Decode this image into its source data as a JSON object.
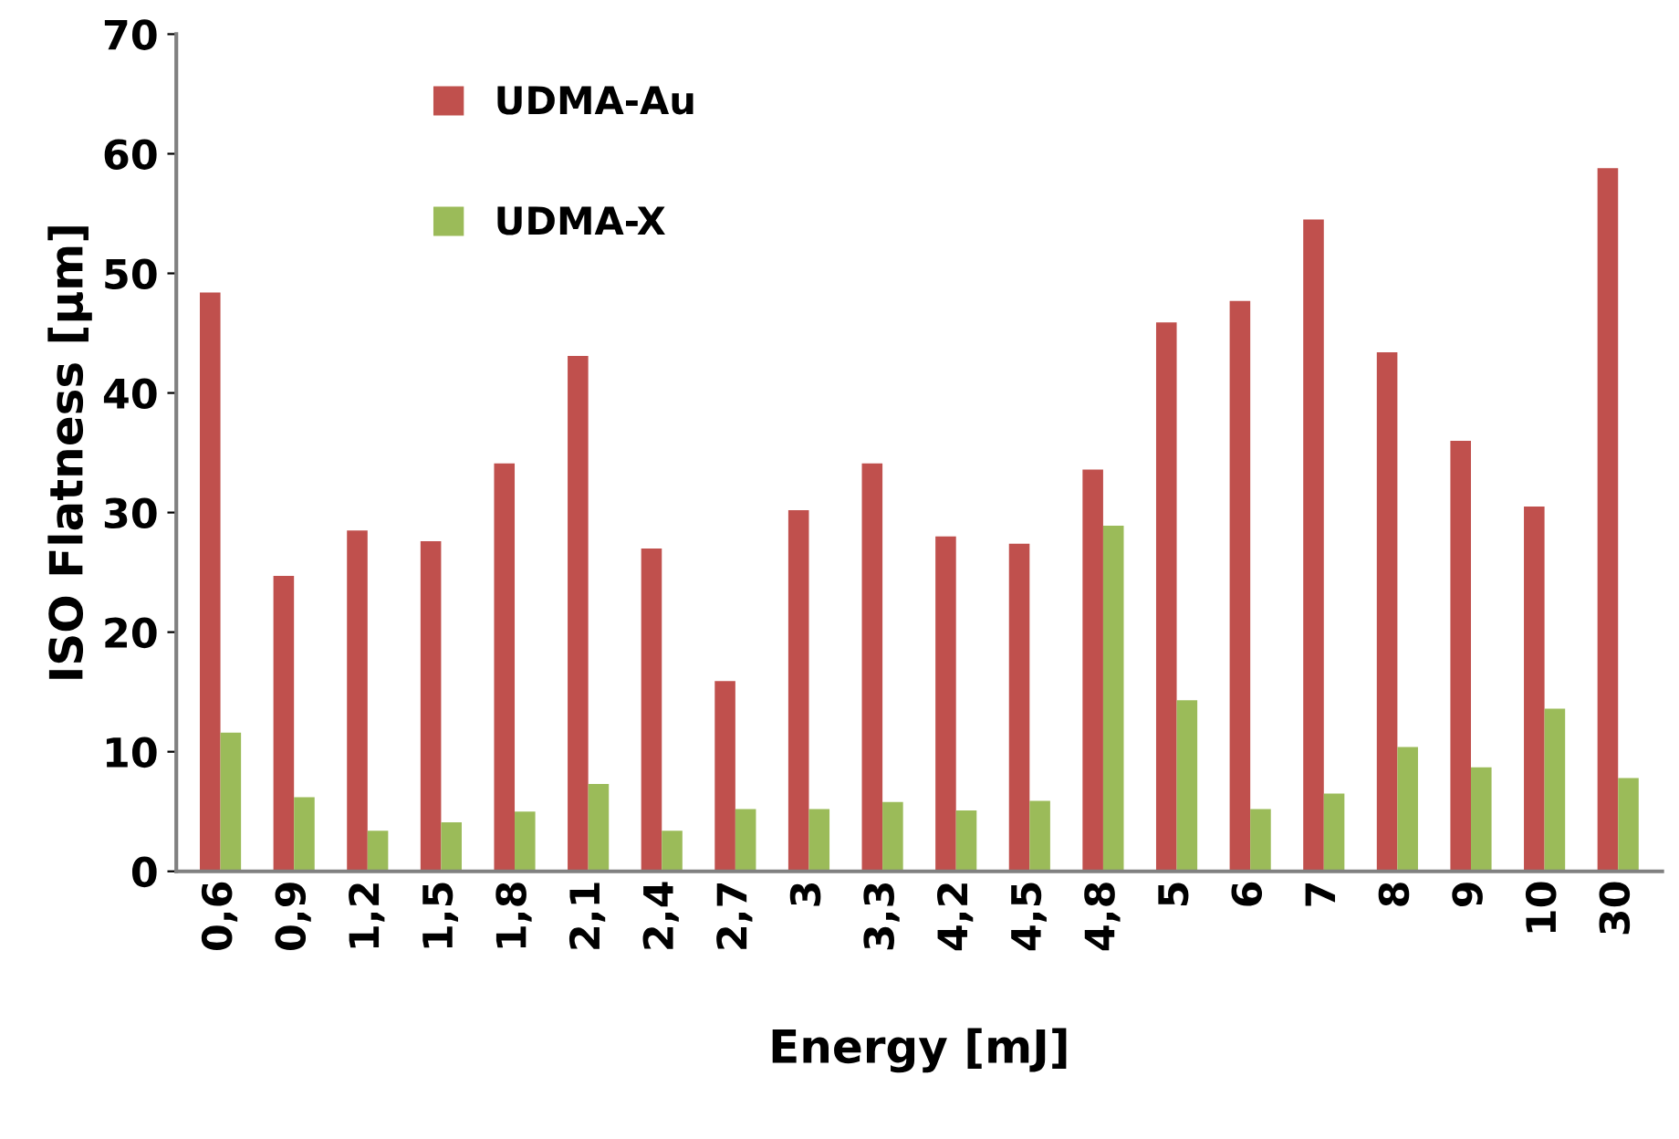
{
  "chart_data": {
    "type": "bar",
    "xlabel": "Energy [mJ]",
    "ylabel": "ISO Flatness [µm]",
    "categories": [
      "0,6",
      "0,9",
      "1,2",
      "1,5",
      "1,8",
      "2,1",
      "2,4",
      "2,7",
      "3",
      "3,3",
      "4,2",
      "4,5",
      "4,8",
      "5",
      "6",
      "7",
      "8",
      "9",
      "10",
      "30"
    ],
    "series": [
      {
        "name": "UDMA-Au",
        "color": "#c0504d",
        "values": [
          48.4,
          24.7,
          28.5,
          27.6,
          34.1,
          43.1,
          27.0,
          15.9,
          30.2,
          34.1,
          28.0,
          27.4,
          33.6,
          45.9,
          47.7,
          54.5,
          43.4,
          36.0,
          30.5,
          58.8
        ]
      },
      {
        "name": "UDMA-X",
        "color": "#9bbb59",
        "values": [
          11.6,
          6.2,
          3.4,
          4.1,
          5.0,
          7.3,
          3.4,
          5.2,
          5.2,
          5.8,
          5.1,
          5.9,
          28.9,
          14.3,
          5.2,
          6.5,
          10.4,
          8.7,
          13.6,
          7.8
        ]
      }
    ],
    "ylim": [
      0,
      70
    ],
    "yticks": [
      0,
      10,
      20,
      30,
      40,
      50,
      60,
      70
    ],
    "grid": false,
    "legend": "top left"
  }
}
